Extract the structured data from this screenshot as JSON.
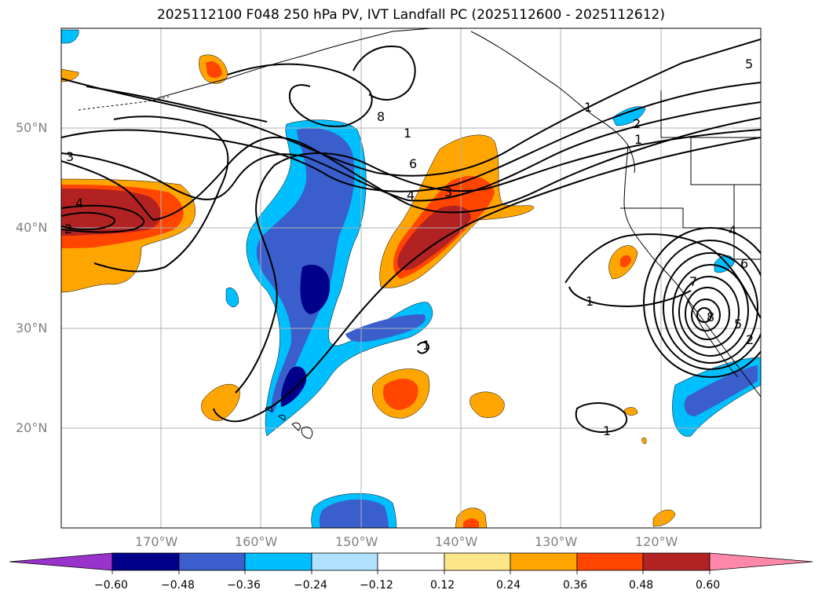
{
  "title": "2025112100 F048 250 hPa PV, IVT Landfall PC (2025112600 - 2025112612)",
  "lat_labels": [
    "50°N",
    "40°N",
    "30°N",
    "20°N"
  ],
  "lon_labels": [
    "170°W",
    "160°W",
    "150°W",
    "140°W",
    "130°W",
    "120°W"
  ],
  "contour_labels": [
    "8",
    "1",
    "6",
    "4",
    "3",
    "4",
    "2",
    "3",
    "1",
    "2",
    "1",
    "5",
    "4",
    "6",
    "7",
    "8",
    "5",
    "2",
    "1",
    "1",
    "1"
  ],
  "colorbar": {
    "ticks": [
      "−0.60",
      "−0.48",
      "−0.36",
      "−0.24",
      "−0.12",
      "0.12",
      "0.24",
      "0.36",
      "0.48",
      "0.60"
    ],
    "colors": [
      "#9933cc",
      "#00008b",
      "#3a5fcd",
      "#00bfff",
      "#b0e2ff",
      "#ffffff",
      "#fde68a",
      "#ffa500",
      "#ff4500",
      "#b22222",
      "#ff88aa"
    ]
  },
  "colors": {
    "grid": "#b0b0b0",
    "contour": "#000000",
    "coast": "#000000"
  }
}
